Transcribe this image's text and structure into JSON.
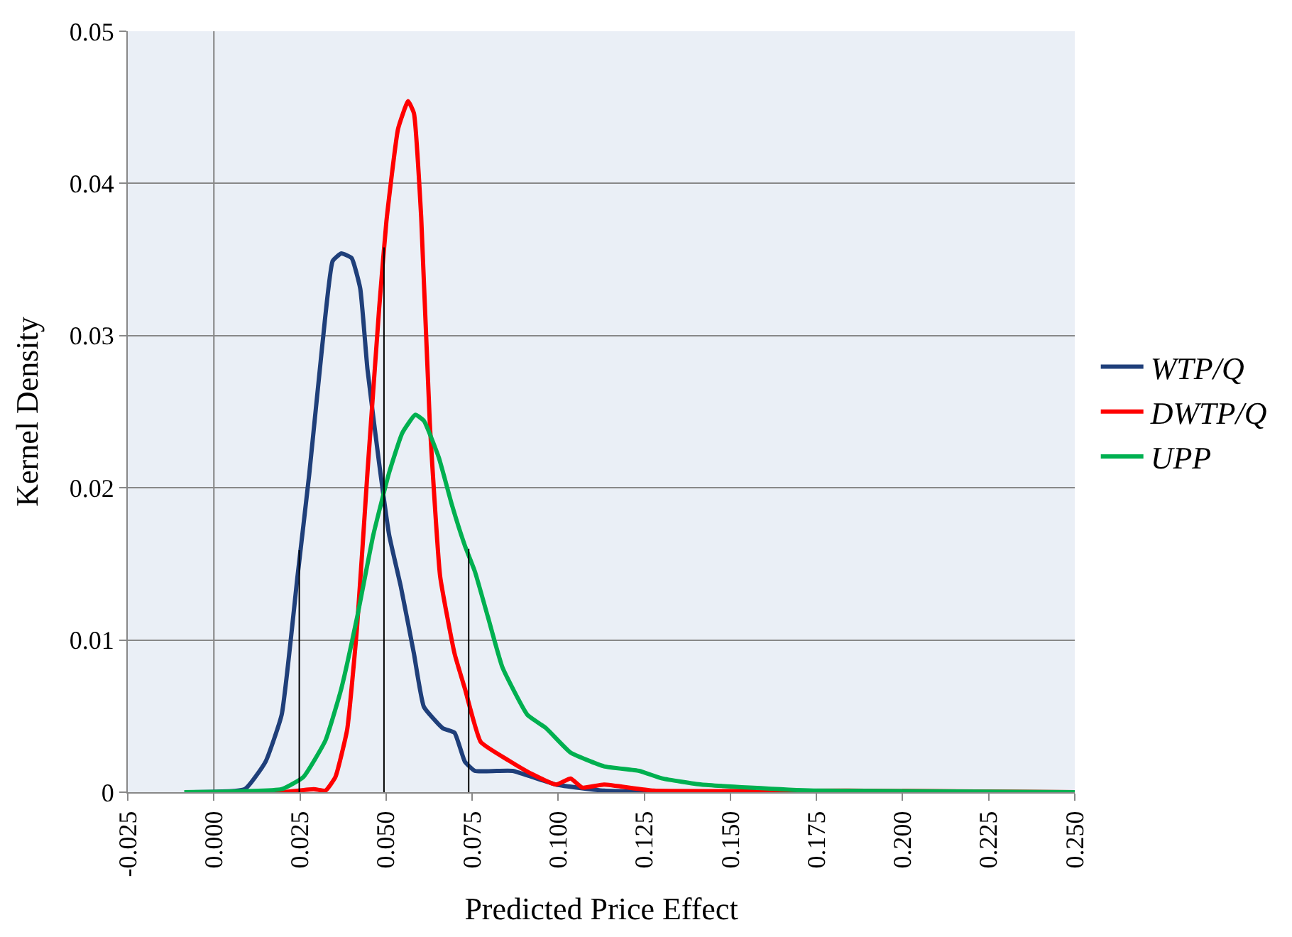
{
  "chart_data": {
    "type": "line",
    "xlabel": "Predicted Price Effect",
    "ylabel": "Kernel Density",
    "xlim": [
      -0.025,
      0.25
    ],
    "xticks": [
      {
        "value": -0.025,
        "label": "-0.025"
      },
      {
        "value": 0,
        "label": "0.000"
      },
      {
        "value": 0.025,
        "label": "0.025"
      },
      {
        "value": 0.05,
        "label": "0.050"
      },
      {
        "value": 0.075,
        "label": "0.075"
      },
      {
        "value": 0.1,
        "label": "0.100"
      },
      {
        "value": 0.125,
        "label": "0.125"
      },
      {
        "value": 0.15,
        "label": "0.150"
      },
      {
        "value": 0.175,
        "label": "0.175"
      },
      {
        "value": 0.2,
        "label": "0.200"
      },
      {
        "value": 0.225,
        "label": "0.225"
      },
      {
        "value": 0.25,
        "label": "0.250"
      }
    ],
    "ylim": [
      0,
      0.05
    ],
    "yticks": [
      0,
      0.01,
      0.02,
      0.03,
      0.04,
      0.05
    ],
    "grid": "y",
    "legend": "right",
    "line_style": "solid",
    "marker": "none",
    "ref_lines": [
      {
        "axis": "x",
        "value": 0,
        "color": "#808080"
      }
    ],
    "series": [
      {
        "name": "WTP/Q",
        "color": "#1f3f7a",
        "x": [
          -0.006,
          0.009,
          0.015,
          0.0197,
          0.0243,
          0.0277,
          0.0315,
          0.0345,
          0.037,
          0.04,
          0.0425,
          0.0446,
          0.048,
          0.0509,
          0.0543,
          0.0581,
          0.061,
          0.0665,
          0.0699,
          0.0729,
          0.0758,
          0.0821,
          0.0868,
          0.0994,
          0.1133,
          0.1416,
          0.25
        ],
        "values": [
          0,
          0.0002,
          0.002,
          0.0051,
          0.0142,
          0.0209,
          0.0294,
          0.0349,
          0.0354,
          0.0351,
          0.0331,
          0.0278,
          0.0216,
          0.0169,
          0.0135,
          0.0091,
          0.0056,
          0.0042,
          0.0039,
          0.002,
          0.0014,
          0.0014,
          0.0014,
          0.0005,
          0.0001,
          0,
          0
        ]
      },
      {
        "name": "DWTP/Q",
        "color": "#ff0000",
        "x": [
          -0.006,
          0.0197,
          0.029,
          0.0324,
          0.0353,
          0.0387,
          0.0416,
          0.0446,
          0.048,
          0.0501,
          0.0535,
          0.0564,
          0.0581,
          0.0602,
          0.0627,
          0.0657,
          0.0699,
          0.0729,
          0.0775,
          0.0855,
          0.0923,
          0.0994,
          0.1036,
          0.107,
          0.1133,
          0.1277,
          0.1838,
          0.25
        ],
        "values": [
          0,
          0,
          0.0002,
          0.0001,
          0.001,
          0.0041,
          0.0109,
          0.021,
          0.0318,
          0.0375,
          0.0436,
          0.0454,
          0.0446,
          0.0378,
          0.0243,
          0.0142,
          0.0091,
          0.0068,
          0.0033,
          0.0021,
          0.0012,
          0.0005,
          0.0009,
          0.0003,
          0.0005,
          0.0001,
          0.0001,
          0
        ]
      },
      {
        "name": "UPP",
        "color": "#00b050",
        "x": [
          -0.0086,
          0.0197,
          0.026,
          0.0324,
          0.037,
          0.0416,
          0.0463,
          0.0509,
          0.0547,
          0.0585,
          0.061,
          0.0653,
          0.0691,
          0.0729,
          0.0758,
          0.0796,
          0.0838,
          0.091,
          0.0965,
          0.1036,
          0.1133,
          0.1235,
          0.1302,
          0.1416,
          0.1556,
          0.1741,
          0.25
        ],
        "values": [
          0,
          0.0002,
          0.001,
          0.0034,
          0.0068,
          0.0115,
          0.0169,
          0.021,
          0.0236,
          0.0248,
          0.0244,
          0.022,
          0.0189,
          0.0162,
          0.0145,
          0.0115,
          0.0082,
          0.0051,
          0.0042,
          0.0026,
          0.0017,
          0.0014,
          0.0009,
          0.0005,
          0.0003,
          0.0001,
          0
        ]
      },
      {
        "color": "#000000",
        "x": [
          0.0248,
          0.0248,
          null,
          0.0494,
          0.0494,
          null,
          0.074,
          0.074
        ],
        "values": [
          0,
          0.0159,
          null,
          0,
          0.0358,
          null,
          0,
          0.016
        ]
      }
    ]
  }
}
